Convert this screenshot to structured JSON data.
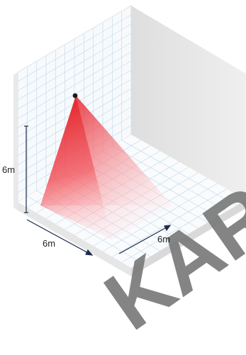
{
  "dimensions": {
    "height_label": "6m",
    "depth_label": "6m",
    "width_label": "6m"
  },
  "watermark": "KAR",
  "colors": {
    "beam_top": "#e3141c",
    "beam_fade": "#ffe6e8",
    "grid_line": "#c8dbe8",
    "wall_fill": "#f7fafd",
    "side_wall": "#e9e9e9",
    "edge": "#e3e3e3",
    "watermark": "#7a7a7a",
    "dimension_line": "#1e2a4a"
  }
}
